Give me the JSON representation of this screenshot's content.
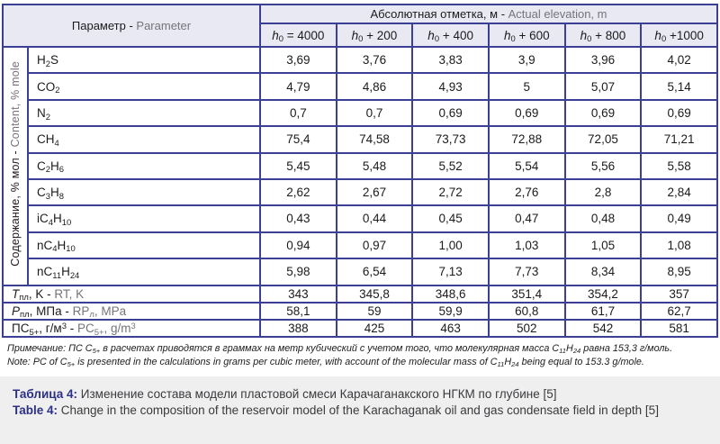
{
  "colors": {
    "border": "#3b4094",
    "header_bg": "#e9e9f3",
    "en_text": "#74747a",
    "ink": "#1b1b1d",
    "caption_bg": "#efefef",
    "caption_label": "#2c3087"
  },
  "table": {
    "param_header": [
      {
        "t": "Параметр - "
      },
      {
        "t": "Parameter",
        "s": "en"
      }
    ],
    "elevation_header": [
      {
        "t": "Абсолютная отметка, м - "
      },
      {
        "t": "Actual elevation, m",
        "s": "en"
      }
    ],
    "col_headers": [
      [
        {
          "t": "h",
          "s": "i"
        },
        {
          "t": "0",
          "s": "sub"
        },
        {
          "t": " = 4000"
        }
      ],
      [
        {
          "t": "h",
          "s": "i"
        },
        {
          "t": "0",
          "s": "sub"
        },
        {
          "t": " + 200"
        }
      ],
      [
        {
          "t": "h",
          "s": "i"
        },
        {
          "t": "0",
          "s": "sub"
        },
        {
          "t": " + 400"
        }
      ],
      [
        {
          "t": "h",
          "s": "i"
        },
        {
          "t": "0",
          "s": "sub"
        },
        {
          "t": " + 600"
        }
      ],
      [
        {
          "t": "h",
          "s": "i"
        },
        {
          "t": "0",
          "s": "sub"
        },
        {
          "t": " + 800"
        }
      ],
      [
        {
          "t": "h",
          "s": "i"
        },
        {
          "t": "0",
          "s": "sub"
        },
        {
          "t": " +1000"
        }
      ]
    ],
    "content_group_label": [
      {
        "t": "Содержание, % мол - "
      },
      {
        "t": "Content, % mole",
        "s": "en"
      }
    ],
    "component_rows": [
      {
        "formula": [
          {
            "t": "H"
          },
          {
            "t": "2",
            "s": "sub"
          },
          {
            "t": "S"
          }
        ],
        "values": [
          "3,69",
          "3,76",
          "3,83",
          "3,9",
          "3,96",
          "4,02"
        ]
      },
      {
        "formula": [
          {
            "t": "CO"
          },
          {
            "t": "2",
            "s": "sub"
          }
        ],
        "values": [
          "4,79",
          "4,86",
          "4,93",
          "5",
          "5,07",
          "5,14"
        ]
      },
      {
        "formula": [
          {
            "t": "N"
          },
          {
            "t": "2",
            "s": "sub"
          }
        ],
        "values": [
          "0,7",
          "0,7",
          "0,69",
          "0,69",
          "0,69",
          "0,69"
        ]
      },
      {
        "formula": [
          {
            "t": "CH"
          },
          {
            "t": "4",
            "s": "sub"
          }
        ],
        "values": [
          "75,4",
          "74,58",
          "73,73",
          "72,88",
          "72,05",
          "71,21"
        ]
      },
      {
        "formula": [
          {
            "t": "C"
          },
          {
            "t": "2",
            "s": "sub"
          },
          {
            "t": "H"
          },
          {
            "t": "6",
            "s": "sub"
          }
        ],
        "values": [
          "5,45",
          "5,48",
          "5,52",
          "5,54",
          "5,56",
          "5,58"
        ]
      },
      {
        "formula": [
          {
            "t": "C"
          },
          {
            "t": "3",
            "s": "sub"
          },
          {
            "t": "H"
          },
          {
            "t": "8",
            "s": "sub"
          }
        ],
        "values": [
          "2,62",
          "2,67",
          "2,72",
          "2,76",
          "2,8",
          "2,84"
        ]
      },
      {
        "formula": [
          {
            "t": "iC"
          },
          {
            "t": "4",
            "s": "sub"
          },
          {
            "t": "H"
          },
          {
            "t": "10",
            "s": "sub"
          }
        ],
        "values": [
          "0,43",
          "0,44",
          "0,45",
          "0,47",
          "0,48",
          "0,49"
        ]
      },
      {
        "formula": [
          {
            "t": "nC"
          },
          {
            "t": "4",
            "s": "sub"
          },
          {
            "t": "H"
          },
          {
            "t": "10",
            "s": "sub"
          }
        ],
        "values": [
          "0,94",
          "0,97",
          "1,00",
          "1,03",
          "1,05",
          "1,08"
        ]
      },
      {
        "formula": [
          {
            "t": "nC"
          },
          {
            "t": "11",
            "s": "sub"
          },
          {
            "t": "H"
          },
          {
            "t": "24",
            "s": "sub"
          }
        ],
        "values": [
          "5,98",
          "6,54",
          "7,13",
          "7,73",
          "8,34",
          "8,95"
        ]
      }
    ],
    "summary_rows": [
      {
        "label": [
          {
            "t": "T",
            "s": "i"
          },
          {
            "t": "пл",
            "s": "sub"
          },
          {
            "t": ", K - "
          },
          {
            "t": "RT, K",
            "s": "en"
          }
        ],
        "values": [
          "343",
          "345,8",
          "348,6",
          "351,4",
          "354,2",
          "357"
        ]
      },
      {
        "label": [
          {
            "t": "P",
            "s": "i"
          },
          {
            "t": "пл",
            "s": "sub"
          },
          {
            "t": ", МПа - "
          },
          {
            "t": "RP",
            "s": "en"
          },
          {
            "t": "л",
            "s": "ensub"
          },
          {
            "t": ", MPa",
            "s": "en"
          }
        ],
        "values": [
          "58,1",
          "59",
          "59,9",
          "60,8",
          "61,7",
          "62,7"
        ]
      },
      {
        "label": [
          {
            "t": "ПС"
          },
          {
            "t": "5+",
            "s": "sub"
          },
          {
            "t": ", г/м"
          },
          {
            "t": "3",
            "s": "sup"
          },
          {
            "t": " - "
          },
          {
            "t": "PC",
            "s": "en"
          },
          {
            "t": "5+",
            "s": "ensub"
          },
          {
            "t": ", g/m",
            "s": "en"
          },
          {
            "t": "3",
            "s": "ensup"
          }
        ],
        "values": [
          "388",
          "425",
          "463",
          "502",
          "542",
          "581"
        ]
      }
    ]
  },
  "note": {
    "ru": [
      {
        "t": "Примечание: ПС С"
      },
      {
        "t": "5+",
        "s": "sub"
      },
      {
        "t": " в расчетах приводятся в граммах на метр кубический с учетом того, что молекулярная масса С"
      },
      {
        "t": "11",
        "s": "sub"
      },
      {
        "t": "Н"
      },
      {
        "t": "24",
        "s": "sub"
      },
      {
        "t": " равна 153,3 г/моль."
      }
    ],
    "en": [
      {
        "t": "Note: PC of C"
      },
      {
        "t": "5+",
        "s": "sub"
      },
      {
        "t": " is presented in the calculations in grams per cubic meter, with account of the molecular mass of C"
      },
      {
        "t": "11",
        "s": "sub"
      },
      {
        "t": "H"
      },
      {
        "t": "24",
        "s": "sub"
      },
      {
        "t": " being equal to 153.3 g/mole."
      }
    ]
  },
  "caption": {
    "ru_label": "Таблица 4:",
    "ru_text": " Изменение состава модели пластовой смеси Карачаганакского НГКМ по глубине [5]",
    "en_label": "Table 4:",
    "en_text": " Change in the composition of the reservoir model of the Karachaganak oil and gas condensate field in depth [5]"
  }
}
